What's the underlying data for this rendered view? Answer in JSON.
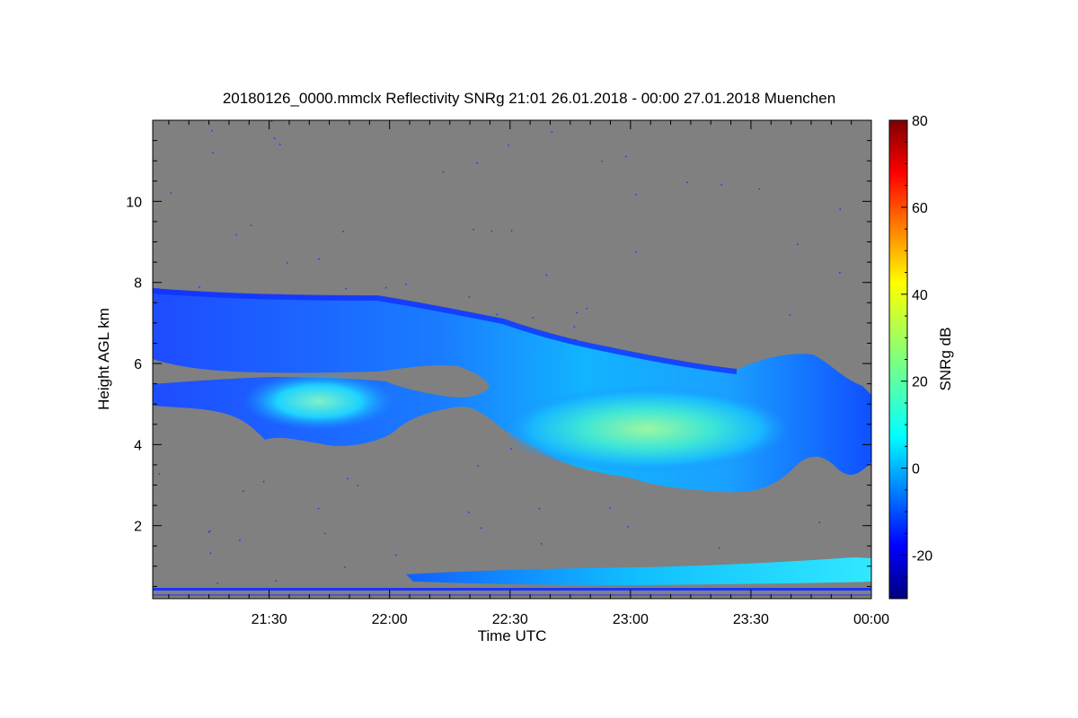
{
  "chart_data": {
    "type": "heatmap",
    "title": "20180126_0000.mmclx Reflectivity SNRg   21:01 26.01.2018 - 00:00 27.01.2018 Muenchen",
    "xlabel": "Time UTC",
    "ylabel": "Height AGL km",
    "colorbar_label": "SNRg dB",
    "x_range": [
      "21:01",
      "00:00"
    ],
    "x_ticks": [
      "21:30",
      "22:00",
      "22:30",
      "23:00",
      "23:30",
      "00:00"
    ],
    "ylim": [
      0.2,
      12.0
    ],
    "y_ticks": [
      2,
      4,
      6,
      8,
      10
    ],
    "colorbar_range": [
      -30,
      80
    ],
    "colorbar_ticks": [
      -20,
      0,
      20,
      40,
      60,
      80
    ],
    "colormap": "jet",
    "background_color": "#808080",
    "features": [
      {
        "name": "upper cloud layer",
        "time_start": "21:01",
        "time_end": "00:00",
        "top_km": [
          7.8,
          7.6,
          7.1,
          6.6,
          6.1,
          6.2,
          5.6
        ],
        "base_km": [
          4.9,
          4.6,
          4.2,
          3.8,
          3.0,
          3.0,
          3.6
        ],
        "peak_snr_db": 15
      },
      {
        "name": "low layer",
        "time_start": "22:05",
        "time_end": "00:00",
        "top_km": [
          0.75,
          1.2
        ],
        "base_km": [
          0.45,
          0.5
        ],
        "peak_snr_db": 8
      },
      {
        "name": "near-ground clutter",
        "height_km": 0.35,
        "snr_db": -22
      }
    ]
  },
  "colors": {
    "noise": "#808080",
    "frame": "#000000"
  }
}
